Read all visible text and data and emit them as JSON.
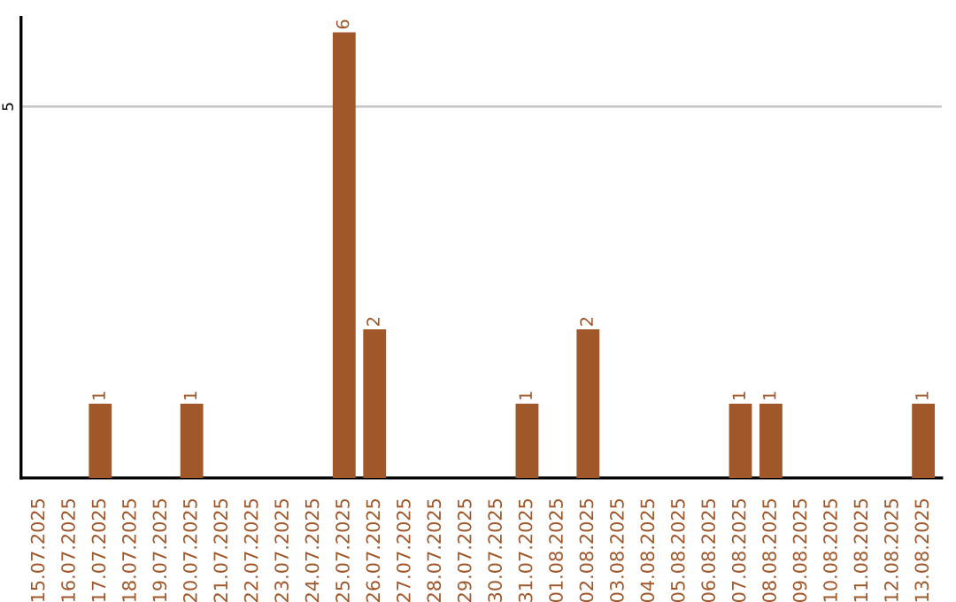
{
  "chart_data": {
    "type": "bar",
    "categories": [
      "15.07.2025",
      "16.07.2025",
      "17.07.2025",
      "18.07.2025",
      "19.07.2025",
      "20.07.2025",
      "21.07.2025",
      "22.07.2025",
      "23.07.2025",
      "24.07.2025",
      "25.07.2025",
      "26.07.2025",
      "27.07.2025",
      "28.07.2025",
      "29.07.2025",
      "30.07.2025",
      "31.07.2025",
      "01.08.2025",
      "02.08.2025",
      "03.08.2025",
      "04.08.2025",
      "05.08.2025",
      "06.08.2025",
      "07.08.2025",
      "08.08.2025",
      "09.08.2025",
      "10.08.2025",
      "11.08.2025",
      "12.08.2025",
      "13.08.2025"
    ],
    "values": [
      0,
      0,
      1,
      0,
      0,
      1,
      0,
      0,
      0,
      0,
      6,
      2,
      0,
      0,
      0,
      0,
      1,
      0,
      2,
      0,
      0,
      0,
      0,
      1,
      1,
      0,
      0,
      0,
      0,
      1
    ],
    "color": "#a0572a",
    "value_labels": [
      null,
      null,
      "1",
      null,
      null,
      "1",
      null,
      null,
      null,
      null,
      "6",
      "2",
      null,
      null,
      null,
      null,
      "1",
      null,
      "2",
      null,
      null,
      null,
      null,
      "1",
      "1",
      null,
      null,
      null,
      null,
      "1"
    ],
    "ylim": [
      0,
      6.2
    ],
    "yticks": [
      5
    ],
    "grid": "y"
  }
}
